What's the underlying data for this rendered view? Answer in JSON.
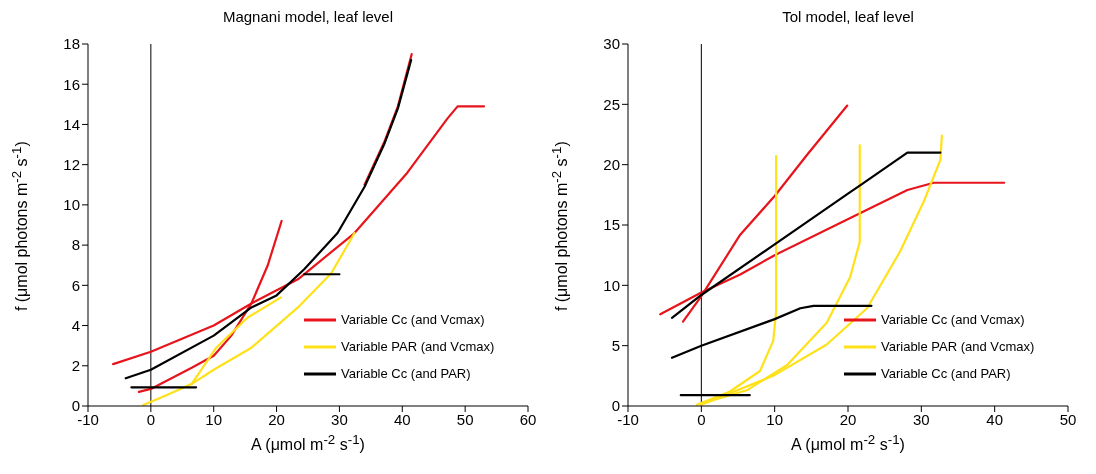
{
  "chart_data": [
    {
      "type": "line",
      "title": "Magnani model, leaf level",
      "xlabel": "A (μmol m$^{-2}$ s$^{-1}$)",
      "ylabel": "f (μmol photons m$^{-2}$ s$^{-1}$)",
      "xlim": [
        -10,
        60
      ],
      "xticks": [
        -10,
        0,
        10,
        20,
        30,
        40,
        50,
        60
      ],
      "ylim": [
        0,
        18
      ],
      "yticks": [
        0,
        2,
        4,
        6,
        8,
        10,
        12,
        14,
        16,
        18
      ],
      "legend": "bottom right",
      "marker": "none",
      "line_style": "solid",
      "ref_lines": [
        {
          "axis": "x",
          "value": 0
        }
      ],
      "series": [
        {
          "name": "Variable Cc (and Vcmax)",
          "color": "#e8141c",
          "x": [
            -6,
            0,
            10,
            16,
            23.4,
            32.4,
            40.8,
            47.2,
            48.8,
            53
          ],
          "values": [
            2.08,
            2.7,
            4.0,
            5.1,
            6.3,
            8.6,
            11.6,
            14.3,
            14.9,
            14.9
          ]
        },
        {
          "color": "#e8141c",
          "x": [
            -1.9,
            0,
            6.5,
            10,
            12.8,
            16,
            18.6,
            20.8
          ],
          "values": [
            0.7,
            0.85,
            1.9,
            2.5,
            3.5,
            5.1,
            7.0,
            9.2
          ]
        },
        {
          "color": "#e8141c",
          "x": [
            34,
            37.1,
            39.3,
            41.5
          ],
          "values": [
            11.0,
            13.1,
            14.9,
            17.5
          ]
        },
        {
          "name": "Variable PAR (and Vcmax)",
          "color": "#ffe11a",
          "x": [
            -1.2,
            2.2,
            6.5,
            10.4,
            15.4,
            20.7
          ],
          "values": [
            0.05,
            0.5,
            1.1,
            2.9,
            4.4,
            5.4
          ]
        },
        {
          "color": "#ffe11a",
          "x": [
            6.5,
            10,
            16,
            23.4,
            28.7,
            32.4
          ],
          "values": [
            1.1,
            1.8,
            2.9,
            4.9,
            6.6,
            8.6
          ]
        },
        {
          "name": "Variable Cc (and PAR)",
          "color": "#000000",
          "x": [
            -4,
            0,
            10,
            16,
            20,
            24.4,
            29.7,
            34,
            37.1,
            39.3,
            41.4
          ],
          "values": [
            1.38,
            1.8,
            3.5,
            4.9,
            5.5,
            6.8,
            8.6,
            10.9,
            13.0,
            14.8,
            17.2
          ]
        },
        {
          "color": "#000000",
          "x": [
            -3.1,
            7.2
          ],
          "values": [
            0.93,
            0.93
          ]
        },
        {
          "color": "#000000",
          "x": [
            24.4,
            30
          ],
          "values": [
            6.55,
            6.55
          ]
        }
      ]
    },
    {
      "type": "line",
      "title": "Tol model, leaf level",
      "xlabel": "A (μmol m$^{-2}$ s$^{-1}$)",
      "ylabel": "f (μmol photons m$^{-2}$ s$^{-1}$)",
      "xlim": [
        -10,
        50
      ],
      "xticks": [
        -10,
        0,
        10,
        20,
        30,
        40,
        50
      ],
      "ylim": [
        0,
        30
      ],
      "yticks": [
        0,
        5,
        10,
        15,
        20,
        25,
        30
      ],
      "legend": "bottom right",
      "marker": "none",
      "line_style": "solid",
      "ref_lines": [
        {
          "axis": "x",
          "value": 0
        }
      ],
      "series": [
        {
          "name": "Variable Cc (and Vcmax)",
          "color": "#e8141c",
          "x": [
            -5.6,
            0,
            5.3,
            10,
            21.7,
            28.1,
            31.7,
            41.3
          ],
          "values": [
            7.6,
            9.4,
            10.9,
            12.5,
            16.0,
            17.9,
            18.5,
            18.5
          ]
        },
        {
          "color": "#e8141c",
          "x": [
            -2.5,
            0,
            5.3,
            10,
            14.4,
            19.9
          ],
          "values": [
            7.0,
            9.1,
            14.2,
            17.4,
            20.8,
            24.9
          ]
        },
        {
          "name": "Variable PAR (and Vcmax)",
          "color": "#ffe11a",
          "x": [
            -0.6,
            3.9,
            8,
            9.8,
            10.2,
            10.2
          ],
          "values": [
            0.1,
            1.2,
            2.9,
            5.4,
            7.8,
            20.7
          ]
        },
        {
          "color": "#ffe11a",
          "x": [
            0,
            6.2,
            11.7,
            17.1,
            20.3,
            21.6,
            21.6
          ],
          "values": [
            0.2,
            1.3,
            3.4,
            6.9,
            10.7,
            13.6,
            21.6
          ]
        },
        {
          "color": "#ffe11a",
          "x": [
            0,
            9.8,
            17.1,
            22.6,
            27.1,
            30.3,
            32.6,
            32.8
          ],
          "values": [
            0.1,
            2.5,
            5.1,
            8.1,
            12.8,
            16.9,
            20.4,
            22.4
          ]
        },
        {
          "name": "Variable Cc (and PAR)",
          "color": "#000000",
          "x": [
            -4,
            0,
            10,
            20,
            21.7,
            28.1,
            29,
            32.6
          ],
          "values": [
            7.3,
            9.2,
            13.4,
            17.6,
            18.3,
            21.0,
            21.0,
            21.0
          ]
        },
        {
          "color": "#000000",
          "x": [
            -4,
            0,
            10,
            13.5,
            15.3,
            23.2
          ],
          "values": [
            4.0,
            5.0,
            7.2,
            8.1,
            8.3,
            8.3
          ]
        },
        {
          "color": "#000000",
          "x": [
            -2.8,
            6.6
          ],
          "values": [
            0.9,
            0.9
          ]
        }
      ]
    }
  ]
}
